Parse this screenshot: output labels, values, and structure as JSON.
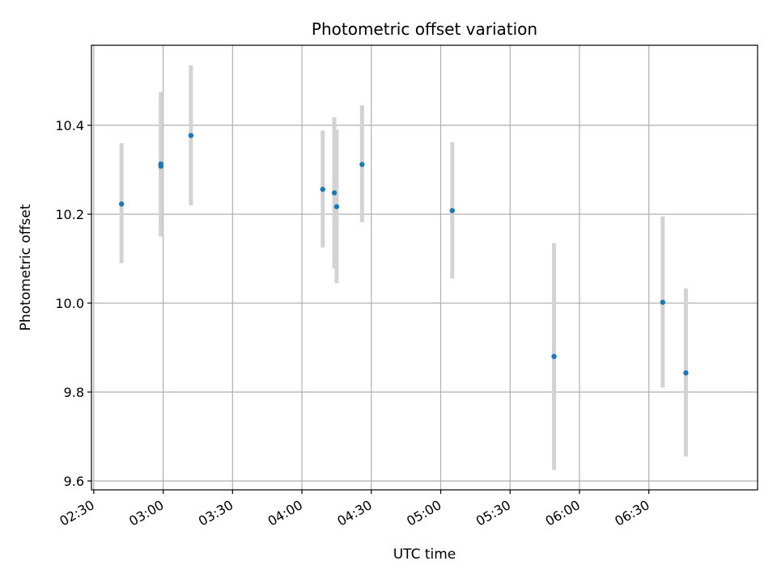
{
  "chart_data": {
    "type": "scatter",
    "title": "Photometric offset variation",
    "xlabel": "UTC time",
    "ylabel": "Photometric offset",
    "grid": true,
    "x_ticks": [
      "02:30",
      "03:00",
      "03:30",
      "04:00",
      "04:30",
      "05:00",
      "05:30",
      "06:00",
      "06:30"
    ],
    "y_ticks": [
      "9.6",
      "9.8",
      "10.0",
      "10.2",
      "10.4"
    ],
    "ylim": [
      9.58,
      10.58
    ],
    "xlim": [
      "02:29",
      "07:17"
    ],
    "colors": {
      "points": "#1f77b4",
      "errorbars": "#d3d3d3",
      "grid": "#b0b0b0"
    },
    "series": [
      {
        "points": [
          {
            "x": "02:42",
            "y": 10.223,
            "lo": 10.09,
            "hi": 10.36
          },
          {
            "x": "02:59",
            "y": 10.313,
            "lo": 10.15,
            "hi": 10.475
          },
          {
            "x": "02:59",
            "y": 10.308,
            "lo": 10.15,
            "hi": 10.47
          },
          {
            "x": "03:12",
            "y": 10.377,
            "lo": 10.22,
            "hi": 10.535
          },
          {
            "x": "04:09",
            "y": 10.256,
            "lo": 10.125,
            "hi": 10.388
          },
          {
            "x": "04:14",
            "y": 10.248,
            "lo": 10.078,
            "hi": 10.418
          },
          {
            "x": "04:15",
            "y": 10.217,
            "lo": 10.045,
            "hi": 10.39
          },
          {
            "x": "04:26",
            "y": 10.312,
            "lo": 10.182,
            "hi": 10.445
          },
          {
            "x": "05:05",
            "y": 10.208,
            "lo": 10.055,
            "hi": 10.362
          },
          {
            "x": "05:49",
            "y": 9.88,
            "lo": 9.625,
            "hi": 10.135
          },
          {
            "x": "06:36",
            "y": 10.002,
            "lo": 9.81,
            "hi": 10.195
          },
          {
            "x": "06:46",
            "y": 9.843,
            "lo": 9.655,
            "hi": 10.033
          }
        ]
      }
    ]
  }
}
